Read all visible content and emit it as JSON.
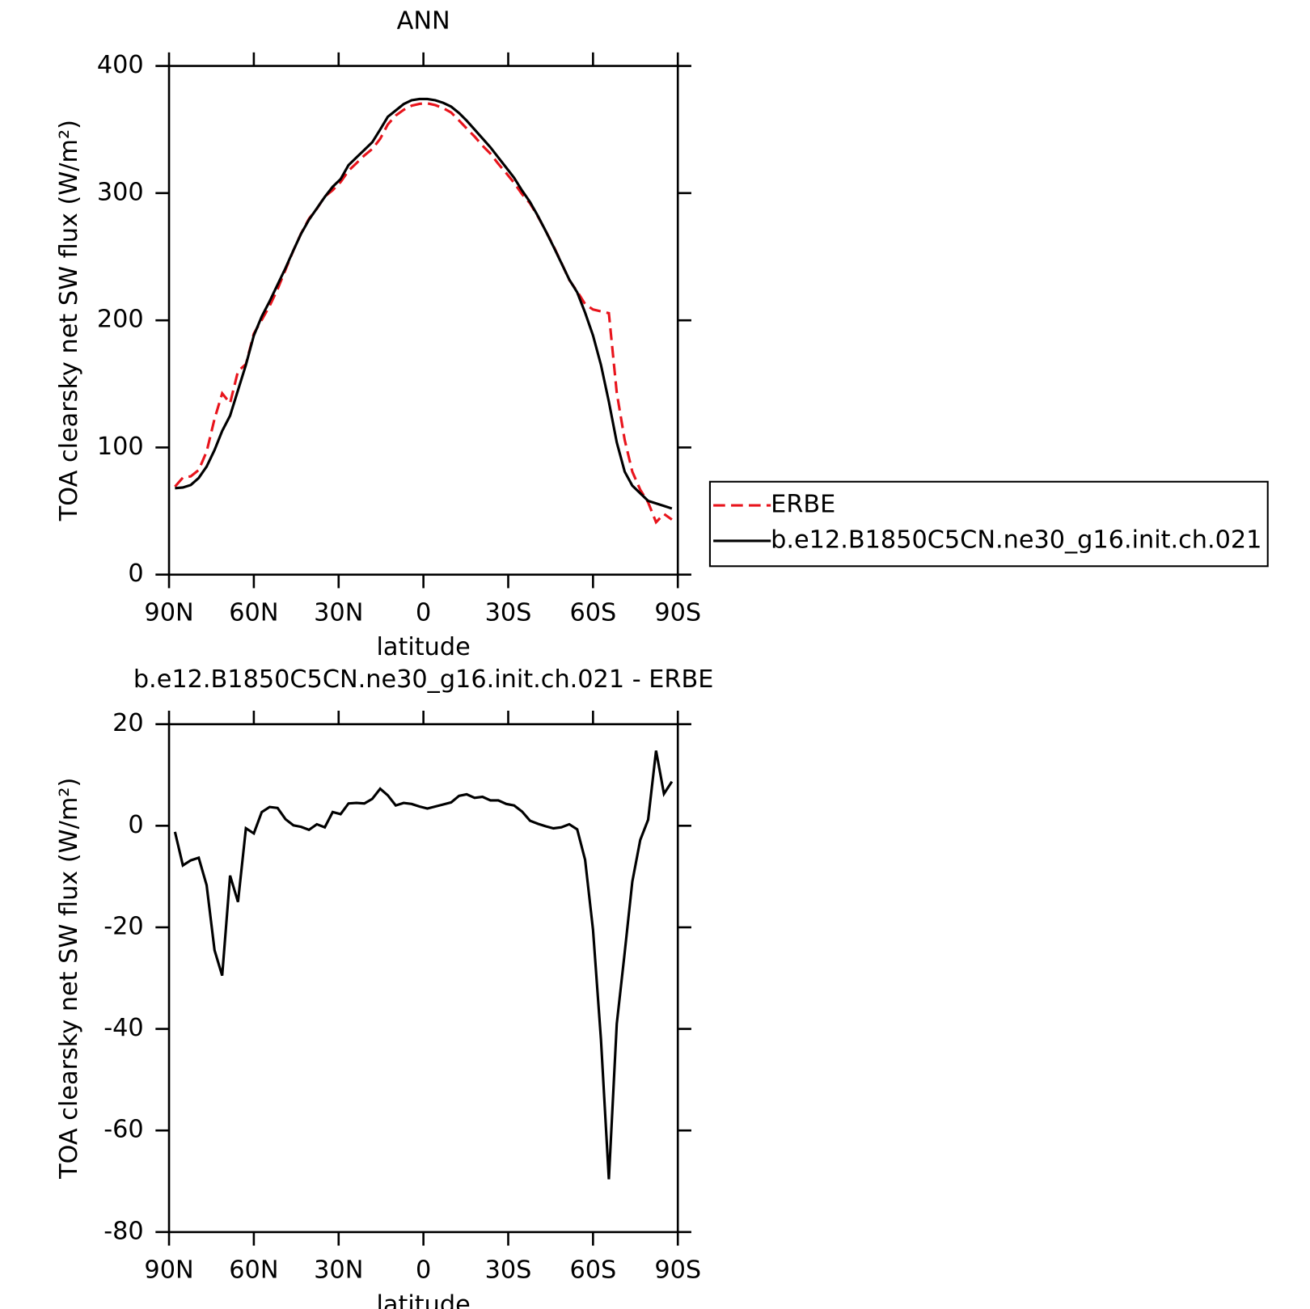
{
  "chart_data": [
    {
      "type": "line",
      "title": "ANN",
      "xlabel": "latitude",
      "ylabel": "TOA clearsky net SW flux (W/m²)",
      "x": [
        87.9,
        85.1,
        82.3,
        79.5,
        76.7,
        73.9,
        71.2,
        68.4,
        65.6,
        62.8,
        60.0,
        57.2,
        54.4,
        51.6,
        48.8,
        46.0,
        43.3,
        40.5,
        37.7,
        34.9,
        32.1,
        29.3,
        26.5,
        23.7,
        20.9,
        18.1,
        15.3,
        12.6,
        9.8,
        7.0,
        4.2,
        1.4,
        -1.4,
        -4.2,
        -7.0,
        -9.8,
        -12.6,
        -15.3,
        -18.1,
        -20.9,
        -23.7,
        -26.5,
        -29.3,
        -32.1,
        -34.9,
        -37.7,
        -40.5,
        -43.3,
        -46.0,
        -48.8,
        -51.6,
        -54.4,
        -57.2,
        -60.0,
        -62.8,
        -65.6,
        -68.4,
        -71.2,
        -73.9,
        -76.7,
        -79.5,
        -82.3,
        -85.1,
        -87.9
      ],
      "series": [
        {
          "name": "ERBE",
          "color": "#e8141c",
          "dashed": true,
          "values": [
            69.2,
            76.3,
            77.3,
            82.3,
            96.7,
            122.5,
            142.5,
            134.8,
            160,
            165.5,
            189.5,
            200.3,
            211.3,
            224.5,
            239.7,
            254.9,
            268.2,
            279.8,
            287.7,
            297.3,
            302.3,
            308.7,
            317.6,
            323.5,
            329.6,
            334.7,
            342.7,
            354,
            361,
            365.5,
            368.7,
            370.2,
            370.6,
            369.2,
            366.8,
            363.4,
            357.1,
            350.8,
            344.5,
            337.3,
            331,
            323,
            315.7,
            308,
            299.2,
            292,
            281.6,
            270.1,
            258.5,
            245.3,
            231.7,
            222.7,
            212.7,
            208.5,
            207,
            205.6,
            143,
            106,
            81,
            66.8,
            56.8,
            41.2,
            47.7,
            43.3
          ]
        },
        {
          "name": "b.e12.B1850C5CN.ne30_g16.init.ch.021",
          "color": "#000000",
          "dashed": false,
          "values": [
            68,
            68.5,
            70.5,
            76,
            85,
            98,
            113,
            125,
            145,
            165,
            188,
            203,
            215,
            228,
            241,
            255,
            268,
            279,
            288,
            297,
            305,
            311,
            322,
            328,
            334,
            340,
            350,
            360,
            365,
            370,
            373,
            374,
            374,
            373,
            371,
            368,
            363,
            357,
            350,
            343,
            336,
            328,
            320,
            312,
            302,
            293,
            282,
            270,
            258,
            245,
            232,
            222,
            206,
            188,
            165,
            136,
            104,
            81,
            70,
            64,
            58,
            56,
            54,
            52
          ]
        }
      ],
      "xlim": [
        90,
        -90
      ],
      "xticks": [
        {
          "value": 90,
          "label": "90N"
        },
        {
          "value": 60,
          "label": "60N"
        },
        {
          "value": 30,
          "label": "30N"
        },
        0,
        {
          "value": -30,
          "label": "30S"
        },
        {
          "value": -60,
          "label": "60S"
        },
        {
          "value": -90,
          "label": "90S"
        }
      ],
      "ylim": [
        0,
        400
      ],
      "yticks": [
        0,
        100,
        200,
        300,
        400
      ],
      "legend": "outside right"
    },
    {
      "type": "line",
      "title": "b.e12.B1850C5CN.ne30_g16.init.ch.021 - ERBE",
      "xlabel": "latitude",
      "ylabel": "TOA clearsky net SW flux (W/m²)",
      "x": [
        87.9,
        85.1,
        82.3,
        79.5,
        76.7,
        73.9,
        71.2,
        68.4,
        65.6,
        62.8,
        60.0,
        57.2,
        54.4,
        51.6,
        48.8,
        46.0,
        43.3,
        40.5,
        37.7,
        34.9,
        32.1,
        29.3,
        26.5,
        23.7,
        20.9,
        18.1,
        15.3,
        12.6,
        9.8,
        7.0,
        4.2,
        1.4,
        -1.4,
        -4.2,
        -7.0,
        -9.8,
        -12.6,
        -15.3,
        -18.1,
        -20.9,
        -23.7,
        -26.5,
        -29.3,
        -32.1,
        -34.9,
        -37.7,
        -40.5,
        -43.3,
        -46.0,
        -48.8,
        -51.6,
        -54.4,
        -57.2,
        -60.0,
        -62.8,
        -65.6,
        -68.4,
        -71.2,
        -73.9,
        -76.7,
        -79.5,
        -82.3,
        -85.1,
        -87.9
      ],
      "values": [
        -1.2,
        -7.8,
        -6.8,
        -6.3,
        -11.7,
        -24.5,
        -29.5,
        -9.8,
        -15,
        -0.5,
        -1.5,
        2.7,
        3.7,
        3.5,
        1.3,
        0.1,
        -0.2,
        -0.8,
        0.3,
        -0.3,
        2.7,
        2.3,
        4.4,
        4.5,
        4.4,
        5.3,
        7.3,
        6.0,
        4.0,
        4.5,
        4.3,
        3.8,
        3.4,
        3.8,
        4.2,
        4.6,
        5.9,
        6.2,
        5.5,
        5.7,
        5.0,
        5.0,
        4.3,
        4.0,
        2.8,
        1.0,
        0.4,
        -0.1,
        -0.5,
        -0.3,
        0.3,
        -0.7,
        -6.7,
        -20.5,
        -42,
        -69.6,
        -39,
        -25,
        -11,
        -2.8,
        1.2,
        14.8,
        6.3,
        8.7
      ],
      "color": "#000000",
      "xlim": [
        90,
        -90
      ],
      "xticks": [
        {
          "value": 90,
          "label": "90N"
        },
        {
          "value": 60,
          "label": "60N"
        },
        {
          "value": 30,
          "label": "30N"
        },
        0,
        {
          "value": -30,
          "label": "30S"
        },
        {
          "value": -60,
          "label": "60S"
        },
        {
          "value": -90,
          "label": "90S"
        }
      ],
      "ylim": [
        -80,
        20
      ],
      "yticks": [
        -80,
        -60,
        -40,
        -20,
        0,
        20
      ]
    }
  ]
}
